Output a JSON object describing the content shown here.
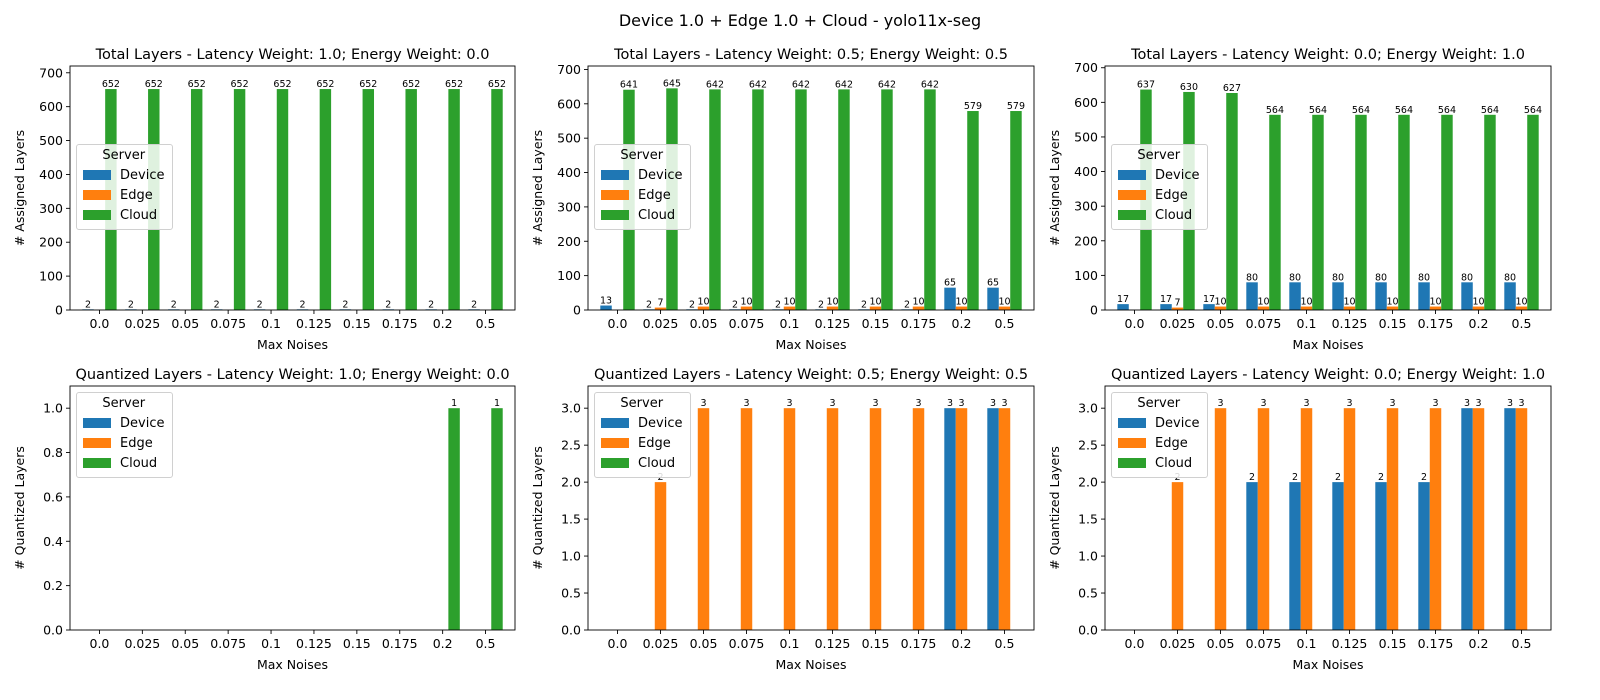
{
  "figure_title": "Device 1.0 + Edge 1.0 + Cloud - yolo11x-seg",
  "colors": {
    "Device": "#1f77b4",
    "Edge": "#ff7f0e",
    "Cloud": "#2ca02c"
  },
  "chart_data": [
    {
      "type": "bar",
      "title": "Total Layers - Latency Weight: 1.0; Energy Weight: 0.0",
      "xlabel": "Max Noises",
      "ylabel": "# Assigned Layers",
      "categories": [
        "0.0",
        "0.025",
        "0.05",
        "0.075",
        "0.1",
        "0.125",
        "0.15",
        "0.175",
        "0.2",
        "0.5"
      ],
      "ylim": [
        0,
        720
      ],
      "yticks": [
        0,
        100,
        200,
        300,
        400,
        500,
        600,
        700
      ],
      "tick_labels": [
        "0",
        "100",
        "200",
        "300",
        "400",
        "500",
        "600",
        "700"
      ],
      "legend": {
        "title": "Server",
        "entries": [
          "Device",
          "Edge",
          "Cloud"
        ],
        "placement": "center-left"
      },
      "series": [
        {
          "name": "Device",
          "values": [
            2,
            2,
            2,
            2,
            2,
            2,
            2,
            2,
            2,
            2
          ]
        },
        {
          "name": "Edge",
          "values": [
            0,
            0,
            0,
            0,
            0,
            0,
            0,
            0,
            0,
            0
          ]
        },
        {
          "name": "Cloud",
          "values": [
            652,
            652,
            652,
            652,
            652,
            652,
            652,
            652,
            652,
            652
          ]
        }
      ]
    },
    {
      "type": "bar",
      "title": "Total Layers - Latency Weight: 0.5; Energy Weight: 0.5",
      "xlabel": "Max Noises",
      "ylabel": "# Assigned Layers",
      "categories": [
        "0.0",
        "0.025",
        "0.05",
        "0.075",
        "0.1",
        "0.125",
        "0.15",
        "0.175",
        "0.2",
        "0.5"
      ],
      "ylim": [
        0,
        710
      ],
      "yticks": [
        0,
        100,
        200,
        300,
        400,
        500,
        600,
        700
      ],
      "tick_labels": [
        "0",
        "100",
        "200",
        "300",
        "400",
        "500",
        "600",
        "700"
      ],
      "legend": {
        "title": "Server",
        "entries": [
          "Device",
          "Edge",
          "Cloud"
        ],
        "placement": "center-left"
      },
      "series": [
        {
          "name": "Device",
          "values": [
            13,
            2,
            2,
            2,
            2,
            2,
            2,
            2,
            65,
            65
          ]
        },
        {
          "name": "Edge",
          "values": [
            0,
            7,
            10,
            10,
            10,
            10,
            10,
            10,
            10,
            10
          ]
        },
        {
          "name": "Cloud",
          "values": [
            641,
            645,
            642,
            642,
            642,
            642,
            642,
            642,
            579,
            579
          ]
        }
      ]
    },
    {
      "type": "bar",
      "title": "Total Layers - Latency Weight: 0.0; Energy Weight: 1.0",
      "xlabel": "Max Noises",
      "ylabel": "# Assigned Layers",
      "categories": [
        "0.0",
        "0.025",
        "0.05",
        "0.075",
        "0.1",
        "0.125",
        "0.15",
        "0.175",
        "0.2",
        "0.5"
      ],
      "ylim": [
        0,
        705
      ],
      "yticks": [
        0,
        100,
        200,
        300,
        400,
        500,
        600,
        700
      ],
      "tick_labels": [
        "0",
        "100",
        "200",
        "300",
        "400",
        "500",
        "600",
        "700"
      ],
      "legend": {
        "title": "Server",
        "entries": [
          "Device",
          "Edge",
          "Cloud"
        ],
        "placement": "center-left"
      },
      "series": [
        {
          "name": "Device",
          "values": [
            17,
            17,
            17,
            80,
            80,
            80,
            80,
            80,
            80,
            80
          ]
        },
        {
          "name": "Edge",
          "values": [
            0,
            7,
            10,
            10,
            10,
            10,
            10,
            10,
            10,
            10
          ]
        },
        {
          "name": "Cloud",
          "values": [
            637,
            630,
            627,
            564,
            564,
            564,
            564,
            564,
            564,
            564
          ]
        }
      ]
    },
    {
      "type": "bar",
      "title": "Quantized Layers - Latency Weight: 1.0; Energy Weight: 0.0",
      "xlabel": "Max Noises",
      "ylabel": "# Quantized Layers",
      "categories": [
        "0.0",
        "0.025",
        "0.05",
        "0.075",
        "0.1",
        "0.125",
        "0.15",
        "0.175",
        "0.2",
        "0.5"
      ],
      "ylim": [
        0,
        1.1
      ],
      "yticks": [
        0,
        0.2,
        0.4,
        0.6,
        0.8,
        1.0
      ],
      "tick_labels": [
        "0.0",
        "0.2",
        "0.4",
        "0.6",
        "0.8",
        "1.0"
      ],
      "legend": {
        "title": "Server",
        "entries": [
          "Device",
          "Edge",
          "Cloud"
        ],
        "placement": "upper-left"
      },
      "series": [
        {
          "name": "Device",
          "values": [
            0,
            0,
            0,
            0,
            0,
            0,
            0,
            0,
            0,
            0
          ]
        },
        {
          "name": "Edge",
          "values": [
            0,
            0,
            0,
            0,
            0,
            0,
            0,
            0,
            0,
            0
          ]
        },
        {
          "name": "Cloud",
          "values": [
            0,
            0,
            0,
            0,
            0,
            0,
            0,
            0,
            1,
            1
          ]
        }
      ]
    },
    {
      "type": "bar",
      "title": "Quantized Layers - Latency Weight: 0.5; Energy Weight: 0.5",
      "xlabel": "Max Noises",
      "ylabel": "# Quantized Layers",
      "categories": [
        "0.0",
        "0.025",
        "0.05",
        "0.075",
        "0.1",
        "0.125",
        "0.15",
        "0.175",
        "0.2",
        "0.5"
      ],
      "ylim": [
        0,
        3.3
      ],
      "yticks": [
        0,
        0.5,
        1.0,
        1.5,
        2.0,
        2.5,
        3.0
      ],
      "tick_labels": [
        "0.0",
        "0.5",
        "1.0",
        "1.5",
        "2.0",
        "2.5",
        "3.0"
      ],
      "legend": {
        "title": "Server",
        "entries": [
          "Device",
          "Edge",
          "Cloud"
        ],
        "placement": "upper-left"
      },
      "series": [
        {
          "name": "Device",
          "values": [
            0,
            0,
            0,
            0,
            0,
            0,
            0,
            0,
            3,
            3
          ]
        },
        {
          "name": "Edge",
          "values": [
            0,
            2,
            3,
            3,
            3,
            3,
            3,
            3,
            3,
            3
          ]
        },
        {
          "name": "Cloud",
          "values": [
            0,
            0,
            0,
            0,
            0,
            0,
            0,
            0,
            0,
            0
          ]
        }
      ]
    },
    {
      "type": "bar",
      "title": "Quantized Layers - Latency Weight: 0.0; Energy Weight: 1.0",
      "xlabel": "Max Noises",
      "ylabel": "# Quantized Layers",
      "categories": [
        "0.0",
        "0.025",
        "0.05",
        "0.075",
        "0.1",
        "0.125",
        "0.15",
        "0.175",
        "0.2",
        "0.5"
      ],
      "ylim": [
        0,
        3.3
      ],
      "yticks": [
        0,
        0.5,
        1.0,
        1.5,
        2.0,
        2.5,
        3.0
      ],
      "tick_labels": [
        "0.0",
        "0.5",
        "1.0",
        "1.5",
        "2.0",
        "2.5",
        "3.0"
      ],
      "legend": {
        "title": "Server",
        "entries": [
          "Device",
          "Edge",
          "Cloud"
        ],
        "placement": "upper-left"
      },
      "series": [
        {
          "name": "Device",
          "values": [
            0,
            0,
            0,
            2,
            2,
            2,
            2,
            2,
            3,
            3
          ]
        },
        {
          "name": "Edge",
          "values": [
            0,
            2,
            3,
            3,
            3,
            3,
            3,
            3,
            3,
            3
          ]
        },
        {
          "name": "Cloud",
          "values": [
            0,
            0,
            0,
            0,
            0,
            0,
            0,
            0,
            0,
            0
          ]
        }
      ]
    }
  ]
}
